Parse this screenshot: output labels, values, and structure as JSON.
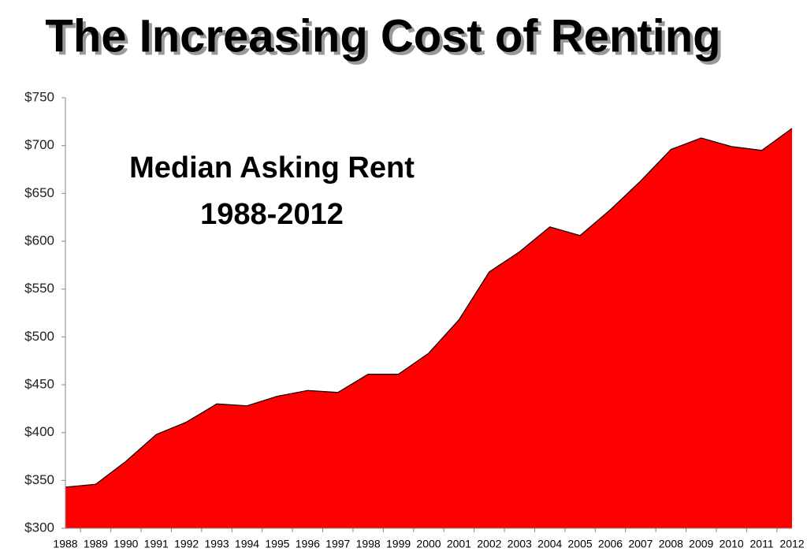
{
  "chart_data": {
    "type": "area",
    "title": "The Increasing Cost of Renting",
    "annotation": [
      "Median Asking Rent",
      "1988-2012"
    ],
    "categories": [
      "1988",
      "1989",
      "1990",
      "1991",
      "1992",
      "1993",
      "1994",
      "1995",
      "1996",
      "1997",
      "1998",
      "1999",
      "2000",
      "2001",
      "2002",
      "2003",
      "2004",
      "2005",
      "2006",
      "2007",
      "2008",
      "2009",
      "2010",
      "2011",
      "2012"
    ],
    "values": [
      343,
      346,
      370,
      398,
      411,
      430,
      428,
      438,
      444,
      442,
      461,
      461,
      483,
      518,
      568,
      589,
      615,
      606,
      633,
      663,
      696,
      708,
      699,
      695,
      718
    ],
    "color": "#ff0000",
    "ylim": [
      300,
      750
    ],
    "yticks": [
      {
        "value": 300,
        "label": "$300"
      },
      {
        "value": 350,
        "label": "$350"
      },
      {
        "value": 400,
        "label": "$400"
      },
      {
        "value": 450,
        "label": "$450"
      },
      {
        "value": 500,
        "label": "$500"
      },
      {
        "value": 550,
        "label": "$550"
      },
      {
        "value": 600,
        "label": "$600"
      },
      {
        "value": 650,
        "label": "$650"
      },
      {
        "value": 700,
        "label": "$700"
      },
      {
        "value": 750,
        "label": "$750"
      }
    ]
  }
}
